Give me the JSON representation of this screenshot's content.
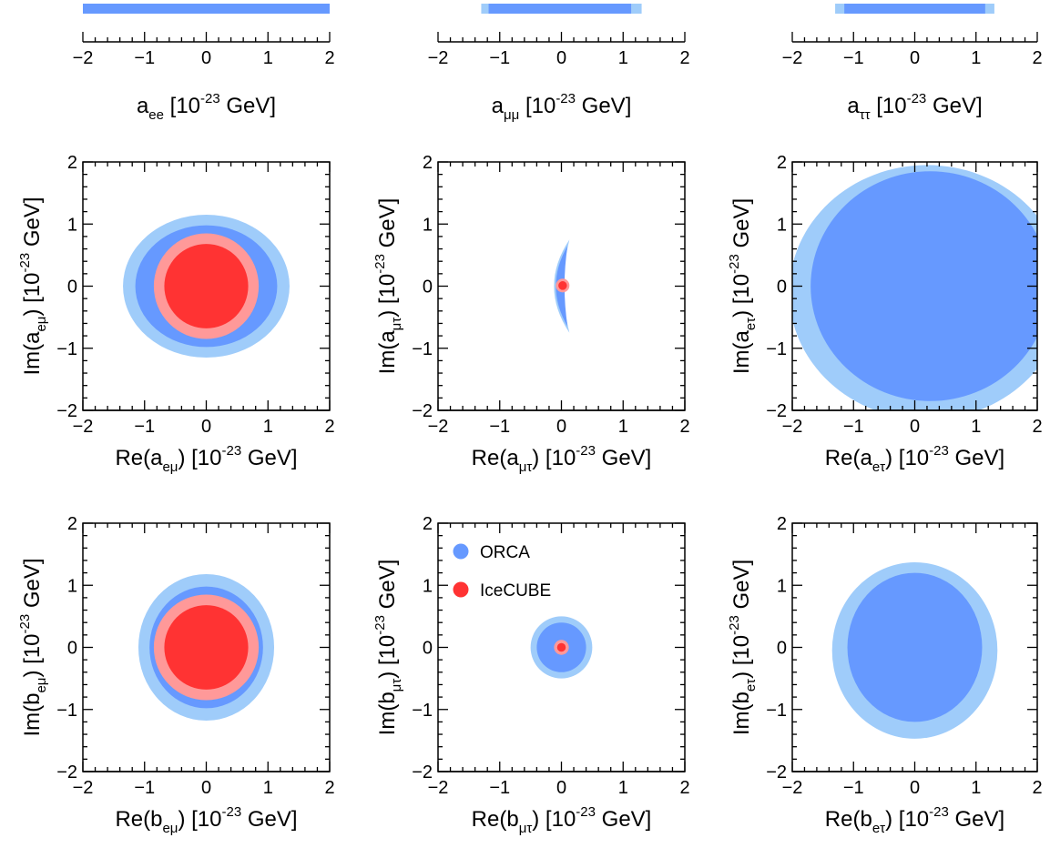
{
  "colors": {
    "orca_outer": "#9fccfa",
    "orca_inner": "#6699ff",
    "icecube_outer": "#ff9999",
    "icecube_inner": "#ff3333",
    "axis": "#000000"
  },
  "chart_data": [
    {
      "id": "aee",
      "type": "interval",
      "xlim": [
        -2,
        2
      ],
      "xticks": [
        "−2",
        "−1",
        "0",
        "1",
        "2"
      ],
      "xlabel": {
        "pre": "a",
        "sub": "ee",
        "mid": " [10",
        "sup": "-23",
        "post": " GeV]"
      },
      "orca_outer": [
        -2,
        2
      ],
      "orca_inner": [
        -2,
        2
      ]
    },
    {
      "id": "amumu",
      "type": "interval",
      "xlim": [
        -2,
        2
      ],
      "xticks": [
        "−2",
        "−1",
        "0",
        "1",
        "2"
      ],
      "xlabel": {
        "pre": "a",
        "sub": "μμ",
        "mid": " [10",
        "sup": "-23",
        "post": " GeV]"
      },
      "orca_outer": [
        -1.3,
        1.3
      ],
      "orca_inner": [
        -1.18,
        1.13
      ]
    },
    {
      "id": "atautau",
      "type": "interval",
      "xlim": [
        -2,
        2
      ],
      "xticks": [
        "−2",
        "−1",
        "0",
        "1",
        "2"
      ],
      "xlabel": {
        "pre": "a",
        "sub": "ττ",
        "mid": " [10",
        "sup": "-23",
        "post": " GeV]"
      },
      "orca_outer": [
        -1.3,
        1.3
      ],
      "orca_inner": [
        -1.15,
        1.15
      ]
    },
    {
      "id": "a_emu",
      "type": "contour",
      "xlim": [
        -2,
        2
      ],
      "ylim": [
        -2,
        2
      ],
      "xticks": [
        "−2",
        "−1",
        "0",
        "1",
        "2"
      ],
      "yticks": [
        "−2",
        "−1",
        "0",
        "1",
        "2"
      ],
      "xlabel": {
        "pre": "Re(a",
        "sub": "eμ",
        "mid": ") [10",
        "sup": "-23",
        "post": " GeV]"
      },
      "ylabel": {
        "pre": "Im(a",
        "sub": "eμ",
        "mid": ") [10",
        "sup": "-23",
        "post": " GeV]"
      },
      "regions": [
        {
          "series": "orca_outer",
          "cx": 0,
          "cy": 0,
          "rx": 1.35,
          "ry": 1.15
        },
        {
          "series": "orca_inner",
          "cx": 0,
          "cy": 0,
          "rx": 1.15,
          "ry": 0.98
        },
        {
          "series": "icecube_outer",
          "cx": 0,
          "cy": 0,
          "rx": 0.85,
          "ry": 0.85
        },
        {
          "series": "icecube_inner",
          "cx": 0,
          "cy": 0,
          "rx": 0.68,
          "ry": 0.68
        }
      ]
    },
    {
      "id": "a_mutau",
      "type": "contour",
      "xlim": [
        -2,
        2
      ],
      "ylim": [
        -2,
        2
      ],
      "xticks": [
        "−2",
        "−1",
        "0",
        "1",
        "2"
      ],
      "yticks": [
        "−2",
        "−1",
        "0",
        "1",
        "2"
      ],
      "xlabel": {
        "pre": "Re(a",
        "sub": "μτ",
        "mid": ") [10",
        "sup": "-23",
        "post": " GeV]"
      },
      "ylabel": {
        "pre": "Im(a",
        "sub": "μτ",
        "mid": ") [10",
        "sup": "-23",
        "post": " GeV]"
      },
      "regions": [
        {
          "series": "orca_outer",
          "shape": "crescent",
          "y_half": 0.75,
          "x_tip": 0.13,
          "x_mid_outer": -0.12,
          "x_mid_inner": 0.03
        },
        {
          "series": "orca_inner",
          "shape": "crescent",
          "y_half": 0.65,
          "x_tip": 0.1,
          "x_mid_outer": -0.09,
          "x_mid_inner": 0.05
        },
        {
          "series": "icecube_outer",
          "cx": 0.02,
          "cy": 0.01,
          "rx": 0.11,
          "ry": 0.11
        },
        {
          "series": "icecube_inner",
          "cx": 0.02,
          "cy": 0.01,
          "rx": 0.07,
          "ry": 0.07
        }
      ]
    },
    {
      "id": "a_etau",
      "type": "contour",
      "xlim": [
        -2,
        2
      ],
      "ylim": [
        -2,
        2
      ],
      "xticks": [
        "−2",
        "−1",
        "0",
        "1",
        "2"
      ],
      "yticks": [
        "−2",
        "−1",
        "0",
        "1",
        "2"
      ],
      "xlabel": {
        "pre": "Re(a",
        "sub": "eτ",
        "mid": ") [10",
        "sup": "-23",
        "post": " GeV]"
      },
      "ylabel": {
        "pre": "Im(a",
        "sub": "eτ",
        "mid": ") [10",
        "sup": "-23",
        "post": " GeV]"
      },
      "regions": [
        {
          "series": "orca_outer",
          "cx": 0.2,
          "cy": -0.1,
          "rx": 2.25,
          "ry": 2.05
        },
        {
          "series": "orca_inner",
          "cx": 0.25,
          "cy": 0,
          "rx": 1.95,
          "ry": 1.85
        }
      ]
    },
    {
      "id": "b_emu",
      "type": "contour",
      "xlim": [
        -2,
        2
      ],
      "ylim": [
        -2,
        2
      ],
      "xticks": [
        "−2",
        "−1",
        "0",
        "1",
        "2"
      ],
      "yticks": [
        "−2",
        "−1",
        "0",
        "1",
        "2"
      ],
      "xlabel": {
        "pre": "Re(b",
        "sub": "eμ",
        "mid": ") [10",
        "sup": "-23",
        "post": " GeV]"
      },
      "ylabel": {
        "pre": "Im(b",
        "sub": "eμ",
        "mid": ") [10",
        "sup": "-23",
        "post": " GeV]"
      },
      "regions": [
        {
          "series": "orca_outer",
          "cx": 0,
          "cy": 0,
          "rx": 1.1,
          "ry": 1.18
        },
        {
          "series": "orca_inner",
          "cx": 0,
          "cy": 0,
          "rx": 0.92,
          "ry": 0.98
        },
        {
          "series": "icecube_outer",
          "cx": 0,
          "cy": 0,
          "rx": 0.85,
          "ry": 0.85
        },
        {
          "series": "icecube_inner",
          "cx": 0,
          "cy": 0,
          "rx": 0.68,
          "ry": 0.68
        }
      ]
    },
    {
      "id": "b_mutau",
      "type": "contour",
      "xlim": [
        -2,
        2
      ],
      "ylim": [
        -2,
        2
      ],
      "xticks": [
        "−2",
        "−1",
        "0",
        "1",
        "2"
      ],
      "yticks": [
        "−2",
        "−1",
        "0",
        "1",
        "2"
      ],
      "xlabel": {
        "pre": "Re(b",
        "sub": "μτ",
        "mid": ") [10",
        "sup": "-23",
        "post": " GeV]"
      },
      "ylabel": {
        "pre": "Im(b",
        "sub": "μτ",
        "mid": ") [10",
        "sup": "-23",
        "post": " GeV]"
      },
      "regions": [
        {
          "series": "orca_outer",
          "cx": 0,
          "cy": 0,
          "rx": 0.5,
          "ry": 0.5
        },
        {
          "series": "orca_inner",
          "cx": 0,
          "cy": 0,
          "rx": 0.4,
          "ry": 0.4
        },
        {
          "series": "icecube_outer",
          "cx": 0,
          "cy": 0,
          "rx": 0.12,
          "ry": 0.12
        },
        {
          "series": "icecube_inner",
          "cx": 0,
          "cy": 0,
          "rx": 0.07,
          "ry": 0.07
        }
      ],
      "legend": [
        {
          "series": "orca_inner",
          "label": "ORCA"
        },
        {
          "series": "icecube_inner",
          "label": "IceCUBE"
        }
      ]
    },
    {
      "id": "b_etau",
      "type": "contour",
      "xlim": [
        -2,
        2
      ],
      "ylim": [
        -2,
        2
      ],
      "xticks": [
        "−2",
        "−1",
        "0",
        "1",
        "2"
      ],
      "yticks": [
        "−2",
        "−1",
        "0",
        "1",
        "2"
      ],
      "xlabel": {
        "pre": "Re(b",
        "sub": "eτ",
        "mid": ") [10",
        "sup": "-23",
        "post": " GeV]"
      },
      "ylabel": {
        "pre": "Im(b",
        "sub": "eτ",
        "mid": ") [10",
        "sup": "-23",
        "post": " GeV]"
      },
      "regions": [
        {
          "series": "orca_outer",
          "cx": 0,
          "cy": -0.05,
          "rx": 1.35,
          "ry": 1.42
        },
        {
          "series": "orca_inner",
          "cx": 0,
          "cy": 0,
          "rx": 1.1,
          "ry": 1.2
        }
      ]
    }
  ]
}
